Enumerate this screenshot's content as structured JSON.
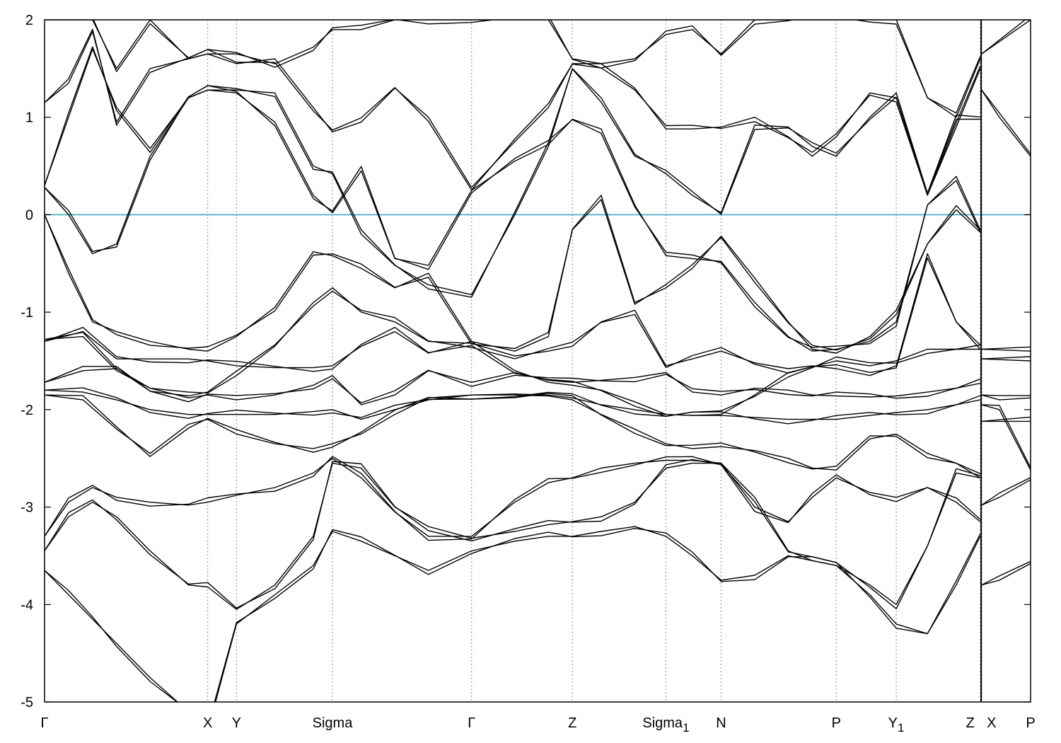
{
  "chart_data": {
    "type": "line",
    "title": "",
    "xlabel": "",
    "ylabel": "",
    "ylim": [
      -5,
      2
    ],
    "yticks": [
      2,
      1,
      0,
      -1,
      -2,
      -3,
      -4,
      -5
    ],
    "fermi_level": 0,
    "fermi_color": "#3fa7c4",
    "grid": "vertical dotted lines at high-symmetry points",
    "x_range": [
      0,
      20.55
    ],
    "high_symmetry_points": [
      {
        "label": "Γ",
        "sub": "",
        "x": 0.0
      },
      {
        "label": "X",
        "sub": "",
        "x": 3.4
      },
      {
        "label": "Y",
        "sub": "",
        "x": 4.0
      },
      {
        "label": "Sigma",
        "sub": "",
        "x": 6.0
      },
      {
        "label": "Γ",
        "sub": "",
        "x": 8.9
      },
      {
        "label": "Z",
        "sub": "",
        "x": 11.0
      },
      {
        "label": "Sigma",
        "sub": "1",
        "x": 12.95
      },
      {
        "label": "N",
        "sub": "",
        "x": 14.1
      },
      {
        "label": "P",
        "sub": "",
        "x": 16.5
      },
      {
        "label": "Y",
        "sub": "1",
        "x": 17.75
      },
      {
        "label": "Z",
        "sub": "",
        "x": 19.5
      },
      {
        "label": "X",
        "sub": "",
        "x": 19.53
      },
      {
        "label": "P",
        "sub": "",
        "x": 20.55
      }
    ],
    "path_break_x": 19.52,
    "series": [
      {
        "x": [
          0,
          0.5,
          1.0,
          1.5,
          2.2,
          3.0,
          3.4,
          4.0,
          4.8,
          5.6,
          6.0,
          6.6,
          7.3,
          8.0,
          8.9,
          9.8,
          10.5,
          11.0,
          11.6,
          12.3,
          12.95,
          13.5,
          14.1,
          14.8,
          15.5,
          16.0,
          16.5,
          17.2,
          17.75,
          18.4,
          19.0,
          19.5
        ],
        "y": [
          -3.65,
          -3.9,
          -4.15,
          -4.4,
          -4.75,
          -5.1,
          -5.3,
          -4.2,
          -3.9,
          -3.6,
          -3.25,
          -3.35,
          -3.5,
          -3.65,
          -3.45,
          -3.35,
          -3.3,
          -3.3,
          -3.25,
          -3.2,
          -3.3,
          -3.5,
          -3.75,
          -3.7,
          -3.5,
          -3.55,
          -3.6,
          -3.9,
          -4.2,
          -4.3,
          -3.8,
          -3.3
        ]
      },
      {
        "x": [
          0,
          0.5,
          1.0,
          1.5,
          2.2,
          3.0,
          3.4,
          4.0,
          4.8,
          5.6,
          6.0,
          6.6,
          7.3,
          8.0,
          8.9,
          9.8,
          10.5,
          11.0,
          11.6,
          12.3,
          12.95,
          13.5,
          14.1,
          14.8,
          15.5,
          16.0,
          16.5,
          17.2,
          17.75,
          18.4,
          19.0,
          19.5
        ],
        "y": [
          -3.45,
          -3.1,
          -2.95,
          -3.1,
          -3.45,
          -3.8,
          -3.82,
          -4.05,
          -3.8,
          -3.3,
          -2.55,
          -2.6,
          -3.0,
          -3.2,
          -3.32,
          -3.25,
          -3.18,
          -3.15,
          -3.1,
          -2.95,
          -2.6,
          -2.55,
          -2.55,
          -3.0,
          -3.15,
          -2.9,
          -2.7,
          -2.85,
          -2.9,
          -2.8,
          -2.95,
          -3.15
        ]
      },
      {
        "x": [
          0,
          0.5,
          1.0,
          1.5,
          2.2,
          3.0,
          3.4,
          4.0,
          4.8,
          5.6,
          6.0,
          6.6,
          7.3,
          8.0,
          8.9,
          9.8,
          10.5,
          11.0,
          11.6,
          12.3,
          12.95,
          13.5,
          14.1,
          14.8,
          15.5,
          16.0,
          16.5,
          17.2,
          17.75,
          18.4,
          19.0,
          19.5
        ],
        "y": [
          -3.3,
          -2.95,
          -2.8,
          -2.9,
          -2.95,
          -2.98,
          -2.95,
          -2.88,
          -2.8,
          -2.65,
          -2.5,
          -2.7,
          -3.05,
          -3.3,
          -3.3,
          -2.95,
          -2.75,
          -2.7,
          -2.6,
          -2.55,
          -2.52,
          -2.52,
          -2.55,
          -2.9,
          -3.45,
          -3.55,
          -3.6,
          -3.8,
          -4.0,
          -3.4,
          -2.65,
          -2.7
        ]
      },
      {
        "x": [
          0,
          0.8,
          1.5,
          2.2,
          3.0,
          3.4,
          4.0,
          4.8,
          5.6,
          6.0,
          6.6,
          7.3,
          8.0,
          8.9,
          9.8,
          10.5,
          11.0,
          11.6,
          12.3,
          12.95,
          13.5,
          14.1,
          14.8,
          15.5,
          16.0,
          16.5,
          17.2,
          17.75,
          18.4,
          19.0,
          19.5
        ],
        "y": [
          -1.85,
          -1.9,
          -2.2,
          -2.45,
          -2.15,
          -2.1,
          -2.25,
          -2.35,
          -2.4,
          -2.35,
          -2.25,
          -2.05,
          -1.88,
          -1.85,
          -1.85,
          -1.86,
          -1.9,
          -2.05,
          -2.2,
          -2.35,
          -2.4,
          -2.38,
          -2.42,
          -2.5,
          -2.6,
          -2.62,
          -2.3,
          -2.25,
          -2.45,
          -2.55,
          -2.7
        ]
      },
      {
        "x": [
          0,
          0.8,
          1.5,
          2.2,
          3.0,
          3.4,
          4.0,
          4.8,
          5.6,
          6.0,
          6.6,
          7.3,
          8.0,
          8.9,
          9.8,
          10.5,
          11.0,
          11.6,
          12.3,
          12.95,
          13.5,
          14.1,
          14.8,
          15.5,
          16.0,
          16.5,
          17.2,
          17.75,
          18.4,
          19.0,
          19.5
        ],
        "y": [
          -1.8,
          -1.82,
          -1.9,
          -2.0,
          -2.05,
          -2.05,
          -2.05,
          -2.05,
          -2.02,
          -2.0,
          -2.1,
          -2.0,
          -1.9,
          -1.85,
          -1.84,
          -1.85,
          -1.88,
          -1.95,
          -2.0,
          -2.05,
          -2.06,
          -2.06,
          -2.08,
          -2.1,
          -2.1,
          -2.1,
          -2.06,
          -2.03,
          -2.0,
          -1.95,
          -1.9
        ]
      },
      {
        "x": [
          0,
          0.8,
          1.5,
          2.2,
          3.0,
          3.4,
          4.0,
          4.8,
          5.6,
          6.0,
          6.6,
          7.3,
          8.0,
          8.9,
          9.8,
          10.5,
          11.0,
          11.6,
          12.3,
          12.95,
          13.5,
          14.1,
          14.8,
          15.5,
          16.0,
          16.5,
          17.2,
          17.75,
          18.4,
          19.0,
          19.5
        ],
        "y": [
          -1.72,
          -1.6,
          -1.58,
          -1.78,
          -1.88,
          -1.85,
          -1.9,
          -1.85,
          -1.75,
          -1.65,
          -1.95,
          -1.85,
          -1.6,
          -1.72,
          -1.62,
          -1.7,
          -1.72,
          -1.7,
          -1.67,
          -1.62,
          -1.82,
          -1.85,
          -1.78,
          -1.8,
          -1.85,
          -1.86,
          -1.87,
          -1.86,
          -1.82,
          -1.78,
          -1.73
        ]
      },
      {
        "x": [
          0,
          0.8,
          1.5,
          2.2,
          3.0,
          3.4,
          4.0,
          4.8,
          5.6,
          6.0,
          6.6,
          7.3,
          8.0,
          8.9,
          9.8,
          10.5,
          11.0,
          11.6,
          12.3,
          12.95,
          13.5,
          14.1,
          14.8,
          15.5,
          16.0,
          16.5,
          17.2,
          17.75,
          18.4,
          19.0,
          19.5
        ],
        "y": [
          -1.3,
          -1.2,
          -1.48,
          -1.48,
          -1.48,
          -1.5,
          -1.55,
          -1.57,
          -1.57,
          -1.55,
          -1.35,
          -1.2,
          -1.42,
          -1.3,
          -1.6,
          -1.72,
          -1.75,
          -1.8,
          -1.92,
          -2.05,
          -2.06,
          -2.05,
          -1.85,
          -1.62,
          -1.56,
          -1.5,
          -1.55,
          -1.5,
          -1.38,
          -1.38,
          -1.38
        ]
      },
      {
        "x": [
          0,
          0.8,
          1.5,
          2.2,
          3.0,
          3.4,
          4.0,
          4.8,
          5.6,
          6.0,
          6.6,
          7.3,
          8.0,
          8.9,
          9.8,
          10.5,
          11.0,
          11.6,
          12.3,
          12.95,
          13.5,
          14.1,
          14.8,
          15.5,
          16.0,
          16.5,
          17.2,
          17.75,
          18.4,
          19.0,
          19.5
        ],
        "y": [
          -1.28,
          -1.25,
          -1.6,
          -1.78,
          -1.82,
          -1.83,
          -1.65,
          -1.35,
          -0.9,
          -0.75,
          -1.0,
          -1.1,
          -1.3,
          -1.32,
          -1.45,
          -1.4,
          -1.35,
          -1.1,
          -0.98,
          -1.55,
          -1.48,
          -1.4,
          -1.52,
          -1.58,
          -1.55,
          -1.58,
          -1.65,
          -1.55,
          -0.4,
          -1.1,
          -1.38
        ]
      },
      {
        "x": [
          0,
          0.5,
          1.0,
          1.5,
          2.2,
          3.0,
          3.4,
          4.0,
          4.8,
          5.6,
          6.0,
          6.6,
          7.3,
          8.0,
          8.9,
          9.8,
          10.5,
          11.0,
          11.6,
          12.3,
          12.95,
          13.5,
          14.1,
          14.8,
          15.5,
          16.0,
          16.5,
          17.2,
          17.75,
          18.4,
          19.0,
          19.5
        ],
        "y": [
          0.0,
          -0.6,
          -1.1,
          -1.2,
          -1.3,
          -1.38,
          -1.4,
          -1.25,
          -0.95,
          -0.38,
          -0.42,
          -0.55,
          -0.75,
          -0.6,
          -1.3,
          -1.4,
          -1.25,
          -0.15,
          0.2,
          -0.9,
          -0.75,
          -0.55,
          -0.22,
          -0.65,
          -1.1,
          -1.38,
          -1.42,
          -1.25,
          -0.98,
          -0.3,
          0.05,
          -0.18
        ]
      },
      {
        "x": [
          0,
          0.5,
          1.0,
          1.5,
          2.2,
          3.0,
          3.4,
          4.0,
          4.8,
          5.6,
          6.0,
          6.6,
          7.3,
          8.0,
          8.9,
          9.8,
          10.5,
          11.0,
          11.6,
          12.3,
          12.95,
          13.5,
          14.1,
          14.8,
          15.5,
          16.0,
          16.5,
          17.2,
          17.75,
          18.4,
          19.0,
          19.5
        ],
        "y": [
          0.28,
          0.0,
          -0.4,
          -0.3,
          0.6,
          1.2,
          1.28,
          1.25,
          0.95,
          0.2,
          0.02,
          0.45,
          -0.45,
          -0.52,
          0.25,
          0.55,
          0.72,
          0.98,
          0.88,
          0.1,
          -0.42,
          -0.45,
          -0.48,
          -0.9,
          -1.25,
          -1.4,
          -1.38,
          -1.3,
          -1.1,
          0.1,
          0.35,
          -0.18
        ]
      },
      {
        "x": [
          0,
          0.5,
          1.0,
          1.5,
          2.2,
          3.0,
          3.4,
          4.0,
          4.8,
          5.6,
          6.0,
          6.6,
          7.3,
          8.0,
          8.9,
          9.8,
          10.5,
          11.0,
          11.6,
          12.3,
          12.95,
          13.5,
          14.1,
          14.8,
          15.5,
          16.0,
          16.5,
          17.2,
          17.75,
          18.4,
          19.0,
          19.5
        ],
        "y": [
          0.3,
          1.0,
          1.7,
          1.1,
          0.68,
          1.2,
          1.28,
          1.28,
          1.25,
          0.5,
          0.42,
          -0.2,
          -0.52,
          -0.72,
          -0.82,
          0.0,
          0.7,
          1.5,
          1.2,
          0.62,
          0.42,
          0.2,
          0.02,
          0.92,
          0.9,
          0.7,
          0.6,
          1.0,
          1.25,
          0.22,
          0.98,
          0.98
        ]
      },
      {
        "x": [
          0,
          0.5,
          1.0,
          1.5,
          2.2,
          3.0,
          3.4,
          4.0,
          4.8,
          5.6,
          6.0,
          6.6,
          7.3,
          8.0,
          8.9,
          9.8,
          10.5,
          11.0,
          11.6,
          12.3,
          12.95,
          13.5,
          14.1,
          14.8,
          15.5,
          16.0,
          16.5,
          17.2,
          17.75,
          18.4,
          19.0,
          19.5
        ],
        "y": [
          1.15,
          1.35,
          1.88,
          0.95,
          1.5,
          1.6,
          1.65,
          1.55,
          1.6,
          1.1,
          0.85,
          0.95,
          1.3,
          1.0,
          0.28,
          0.75,
          1.1,
          1.55,
          1.55,
          1.3,
          0.88,
          0.88,
          0.9,
          1.0,
          0.8,
          0.6,
          0.8,
          1.25,
          1.2,
          0.2,
          0.9,
          1.5
        ]
      },
      {
        "x": [
          0,
          0.5,
          1.0,
          1.5,
          2.2,
          3.0,
          3.4,
          4.0,
          4.8,
          5.6,
          6.0,
          6.6,
          7.3,
          8.0,
          8.9,
          9.8,
          10.5,
          11.0,
          11.6,
          12.3,
          12.95,
          13.5,
          14.1,
          14.8,
          15.5,
          16.0,
          16.5,
          17.2,
          17.75,
          18.4,
          19.0,
          19.5
        ],
        "y": [
          2.0,
          2.0,
          2.0,
          1.5,
          2.0,
          1.6,
          1.65,
          1.65,
          1.55,
          1.72,
          1.9,
          1.9,
          2.0,
          2.0,
          2.0,
          2.0,
          2.0,
          1.6,
          1.55,
          1.6,
          1.85,
          1.9,
          1.65,
          2.0,
          2.0,
          2.0,
          2.0,
          2.0,
          2.0,
          1.2,
          1.0,
          1.6
        ]
      }
    ],
    "right_segment_series": [
      {
        "x": [
          19.53,
          20.55
        ],
        "y": [
          1.65,
          2.0
        ]
      },
      {
        "x": [
          19.53,
          19.9,
          20.55
        ],
        "y": [
          1.28,
          1.0,
          0.6
        ]
      },
      {
        "x": [
          19.53,
          20.55
        ],
        "y": [
          -1.38,
          -1.4
        ]
      },
      {
        "x": [
          19.53,
          20.55
        ],
        "y": [
          -1.48,
          -1.5
        ]
      },
      {
        "x": [
          19.53,
          19.9,
          20.55
        ],
        "y": [
          -1.85,
          -1.9,
          -1.88
        ]
      },
      {
        "x": [
          19.53,
          19.9,
          20.55
        ],
        "y": [
          -1.95,
          -2.0,
          -2.62
        ]
      },
      {
        "x": [
          19.53,
          20.55
        ],
        "y": [
          -2.12,
          -2.12
        ]
      },
      {
        "x": [
          19.53,
          19.9,
          20.55
        ],
        "y": [
          -2.98,
          -2.9,
          -2.72
        ]
      },
      {
        "x": [
          19.53,
          19.9,
          20.55
        ],
        "y": [
          -3.8,
          -3.75,
          -3.58
        ]
      }
    ]
  }
}
